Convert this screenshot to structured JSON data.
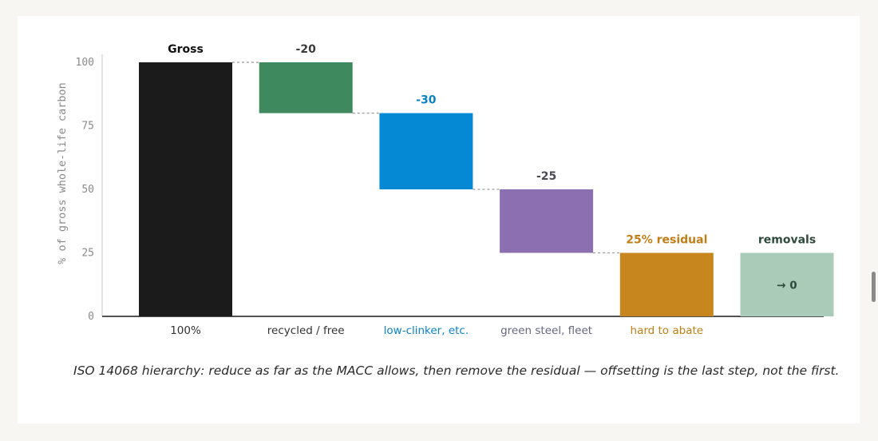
{
  "chart_data": {
    "type": "bar",
    "subtype": "waterfall",
    "ylabel": "% of gross whole-life carbon",
    "ylim": [
      0,
      100
    ],
    "yticks": [
      0,
      25,
      50,
      75,
      100
    ],
    "grid": false,
    "steps": [
      {
        "top_label": "Gross",
        "bottom_label": "100%",
        "start": 100,
        "end": 0,
        "color": "#1b1b1b",
        "label_color": "#111111",
        "bottom_color": "#333333",
        "inner_label": ""
      },
      {
        "top_label": "-20",
        "bottom_label": "recycled / free",
        "start": 100,
        "end": 80,
        "color": "#3e8a5e",
        "label_color": "#3a3a3a",
        "bottom_color": "#333333",
        "inner_label": ""
      },
      {
        "top_label": "-30",
        "bottom_label": "low-clinker, etc.",
        "start": 80,
        "end": 50,
        "color": "#0689d5",
        "label_color": "#0a82c8",
        "bottom_color": "#0a82c8",
        "inner_label": ""
      },
      {
        "top_label": "-25",
        "bottom_label": "green steel, fleet",
        "start": 50,
        "end": 25,
        "color": "#8b6fb1",
        "label_color": "#4a4a55",
        "bottom_color": "#666680",
        "inner_label": ""
      },
      {
        "top_label": "25% residual",
        "bottom_label": "hard to abate",
        "start": 25,
        "end": 0,
        "color": "#c8861f",
        "label_color": "#c17e16",
        "bottom_color": "#c17e16",
        "inner_label": ""
      },
      {
        "top_label": "removals",
        "bottom_label": "",
        "start": 25,
        "end": 0,
        "color": "#a9cbb8",
        "label_color": "#2f4a3c",
        "bottom_color": "#333333",
        "inner_label": "→ 0"
      }
    ]
  },
  "caption": "ISO 14068 hierarchy: reduce as far as the MACC allows, then remove the residual — offsetting is the last step, not the first."
}
